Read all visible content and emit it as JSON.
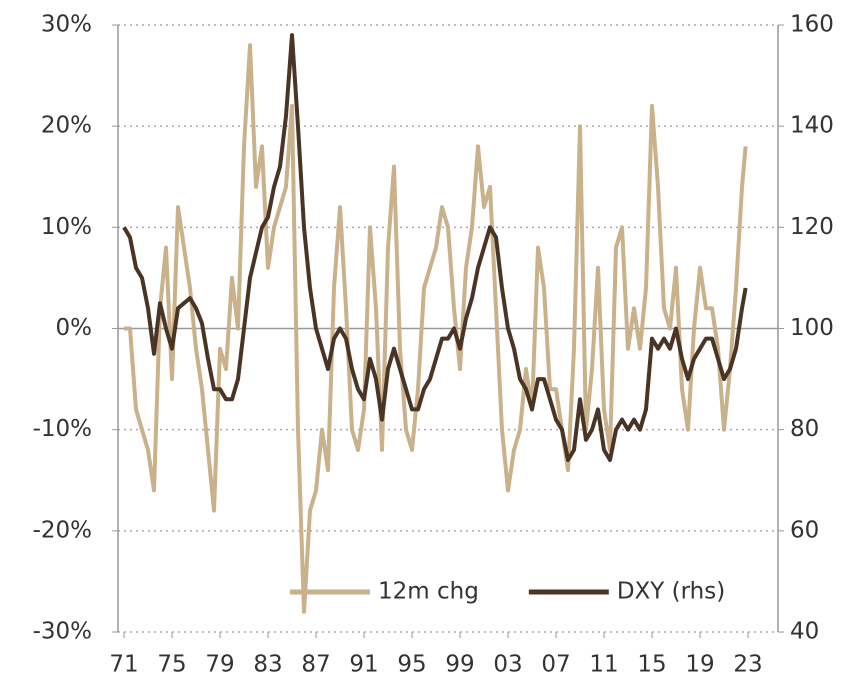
{
  "chart_data": {
    "type": "line",
    "x": [
      1971,
      1971.5,
      1972,
      1972.5,
      1973,
      1973.5,
      1974,
      1974.5,
      1975,
      1975.5,
      1976,
      1976.5,
      1977,
      1977.5,
      1978,
      1978.5,
      1979,
      1979.5,
      1980,
      1980.5,
      1981,
      1981.5,
      1982,
      1982.5,
      1983,
      1983.5,
      1984,
      1984.5,
      1985,
      1985.5,
      1986,
      1986.5,
      1987,
      1987.5,
      1988,
      1988.5,
      1989,
      1989.5,
      1990,
      1990.5,
      1991,
      1991.5,
      1992,
      1992.5,
      1993,
      1993.5,
      1994,
      1994.5,
      1995,
      1995.5,
      1996,
      1996.5,
      1997,
      1997.5,
      1998,
      1998.5,
      1999,
      1999.5,
      2000,
      2000.5,
      2001,
      2001.5,
      2002,
      2002.5,
      2003,
      2003.5,
      2004,
      2004.5,
      2005,
      2005.5,
      2006,
      2006.5,
      2007,
      2007.5,
      2008,
      2008.5,
      2009,
      2009.5,
      2010,
      2010.5,
      2011,
      2011.5,
      2012,
      2012.5,
      2013,
      2013.5,
      2014,
      2014.5,
      2015,
      2015.5,
      2016,
      2016.5,
      2017,
      2017.5,
      2018,
      2018.5,
      2019,
      2019.5,
      2020,
      2020.5,
      2021,
      2021.5,
      2022,
      2022.5,
      2022.8
    ],
    "series": [
      {
        "name": "12m chg",
        "color": "#c9b18b",
        "values": [
          0,
          0,
          -8,
          -10,
          -12,
          -16,
          2,
          8,
          -5,
          12,
          8,
          4,
          -2,
          -6,
          -12,
          -18,
          -2,
          -4,
          5,
          0,
          18,
          28,
          14,
          18,
          6,
          10,
          12,
          14,
          22,
          -10,
          -28,
          -18,
          -16,
          -10,
          -14,
          4,
          12,
          2,
          -10,
          -12,
          -8,
          10,
          2,
          -12,
          8,
          16,
          -2,
          -10,
          -12,
          -6,
          4,
          6,
          8,
          12,
          10,
          2,
          -4,
          6,
          10,
          18,
          12,
          14,
          2,
          -10,
          -16,
          -12,
          -10,
          -4,
          -8,
          8,
          4,
          -6,
          -6,
          -10,
          -14,
          -2,
          20,
          -10,
          -4,
          6,
          -8,
          -12,
          8,
          10,
          -2,
          2,
          -2,
          4,
          22,
          14,
          2,
          0,
          6,
          -6,
          -10,
          0,
          6,
          2,
          2,
          -2,
          -10,
          -4,
          4,
          14,
          18
        ]
      },
      {
        "name": "DXY (rhs)",
        "color": "#4a3426",
        "axis": "y2",
        "values": [
          120,
          118,
          112,
          110,
          104,
          95,
          105,
          100,
          96,
          104,
          105,
          106,
          104,
          101,
          94,
          88,
          88,
          86,
          86,
          90,
          100,
          110,
          115,
          120,
          122,
          128,
          132,
          142,
          158,
          140,
          120,
          108,
          100,
          96,
          92,
          98,
          100,
          98,
          92,
          88,
          86,
          94,
          90,
          82,
          92,
          96,
          92,
          88,
          84,
          84,
          88,
          90,
          94,
          98,
          98,
          100,
          96,
          102,
          106,
          112,
          116,
          120,
          118,
          108,
          100,
          96,
          90,
          88,
          84,
          90,
          90,
          86,
          82,
          80,
          74,
          76,
          86,
          78,
          80,
          84,
          76,
          74,
          80,
          82,
          80,
          82,
          80,
          84,
          98,
          96,
          98,
          96,
          100,
          94,
          90,
          94,
          96,
          98,
          98,
          94,
          90,
          92,
          96,
          104,
          108
        ]
      }
    ],
    "xlim": [
      1970.5,
      2025.5
    ],
    "xticks": [
      {
        "value": 1971,
        "label": "71"
      },
      {
        "value": 1975,
        "label": "75"
      },
      {
        "value": 1979,
        "label": "79"
      },
      {
        "value": 1983,
        "label": "83"
      },
      {
        "value": 1987,
        "label": "87"
      },
      {
        "value": 1991,
        "label": "91"
      },
      {
        "value": 1995,
        "label": "95"
      },
      {
        "value": 1999,
        "label": "99"
      },
      {
        "value": 2003,
        "label": "03"
      },
      {
        "value": 2007,
        "label": "07"
      },
      {
        "value": 2011,
        "label": "11"
      },
      {
        "value": 2015,
        "label": "15"
      },
      {
        "value": 2019,
        "label": "19"
      },
      {
        "value": 2023,
        "label": "23"
      }
    ],
    "ylim": [
      -30,
      30
    ],
    "yticks": [
      {
        "value": -30,
        "label": "-30%"
      },
      {
        "value": -20,
        "label": "-20%"
      },
      {
        "value": -10,
        "label": "-10%"
      },
      {
        "value": 0,
        "label": "0%"
      },
      {
        "value": 10,
        "label": "10%"
      },
      {
        "value": 20,
        "label": "20%"
      },
      {
        "value": 30,
        "label": "30%"
      }
    ],
    "y2lim": [
      40,
      160
    ],
    "y2ticks": [
      40,
      60,
      80,
      100,
      120,
      140,
      160
    ],
    "grid": true,
    "legend": "lower center"
  }
}
